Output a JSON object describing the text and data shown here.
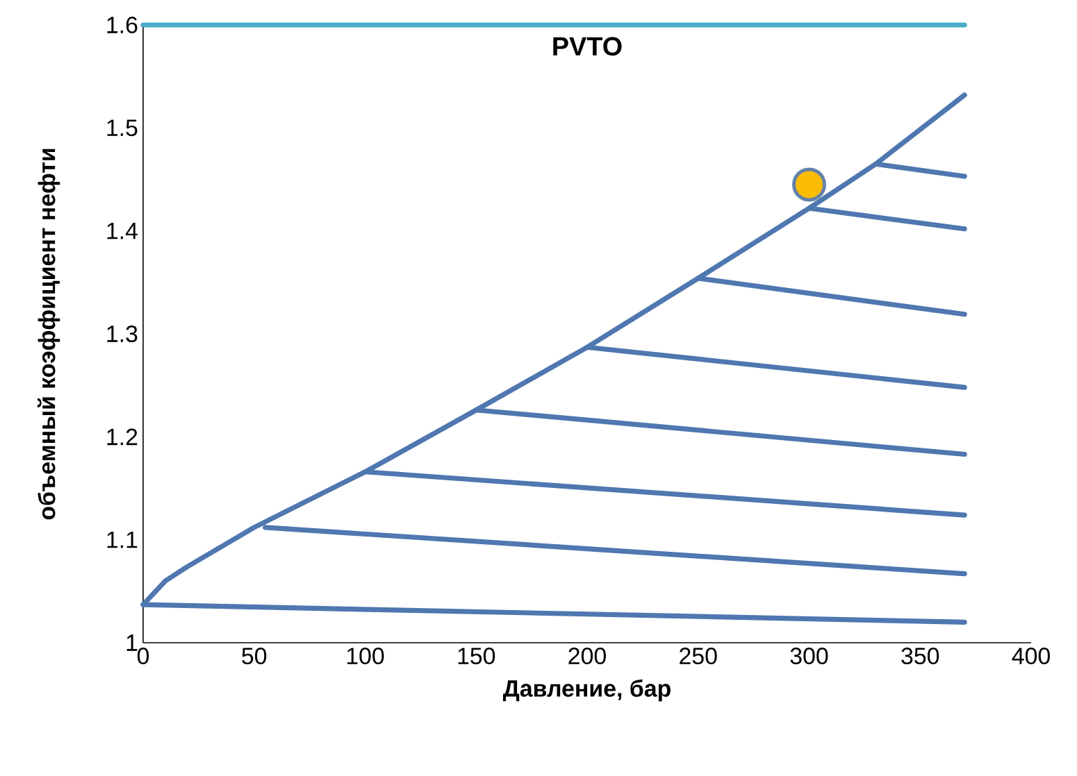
{
  "chart_data": {
    "type": "line",
    "title": "PVTO",
    "xlabel": "Давление, бар",
    "ylabel": "объемный коэффициент нефти",
    "xlim": [
      0,
      400
    ],
    "ylim": [
      1,
      1.6
    ],
    "xticks": [
      0,
      50,
      100,
      150,
      200,
      250,
      300,
      350,
      400
    ],
    "yticks": [
      1,
      1.1,
      1.2,
      1.3,
      1.4,
      1.5,
      1.6
    ],
    "grid": false,
    "marker": "none",
    "series": [
      {
        "type": "line",
        "color": "#4bacc6",
        "x": [
          0,
          370
        ],
        "values": [
          1.6,
          1.6
        ]
      },
      {
        "type": "line",
        "color": "#4f77b0",
        "x": [
          0,
          10,
          20,
          50,
          100,
          150,
          200,
          250,
          300,
          330,
          370
        ],
        "values": [
          1.037,
          1.06,
          1.074,
          1.112,
          1.166,
          1.226,
          1.287,
          1.354,
          1.422,
          1.465,
          1.532
        ]
      },
      {
        "type": "line",
        "color": "#4f77b0",
        "x": [
          0,
          370
        ],
        "values": [
          1.037,
          1.02
        ]
      },
      {
        "type": "line",
        "color": "#4f77b0",
        "x": [
          55,
          370
        ],
        "values": [
          1.112,
          1.067
        ]
      },
      {
        "type": "line",
        "color": "#4f77b0",
        "x": [
          100,
          370
        ],
        "values": [
          1.166,
          1.124
        ]
      },
      {
        "type": "line",
        "color": "#4f77b0",
        "x": [
          150,
          370
        ],
        "values": [
          1.226,
          1.183
        ]
      },
      {
        "type": "line",
        "color": "#4f77b0",
        "x": [
          200,
          370
        ],
        "values": [
          1.287,
          1.248
        ]
      },
      {
        "type": "line",
        "color": "#4f77b0",
        "x": [
          250,
          370
        ],
        "values": [
          1.354,
          1.319
        ]
      },
      {
        "type": "line",
        "color": "#4f77b0",
        "x": [
          300,
          370
        ],
        "values": [
          1.422,
          1.402
        ]
      },
      {
        "type": "line",
        "color": "#4f77b0",
        "x": [
          330,
          370
        ],
        "values": [
          1.465,
          1.453
        ]
      },
      {
        "type": "scatter",
        "color": "#fbbc05",
        "x": [
          300
        ],
        "values": [
          1.445
        ]
      }
    ]
  }
}
